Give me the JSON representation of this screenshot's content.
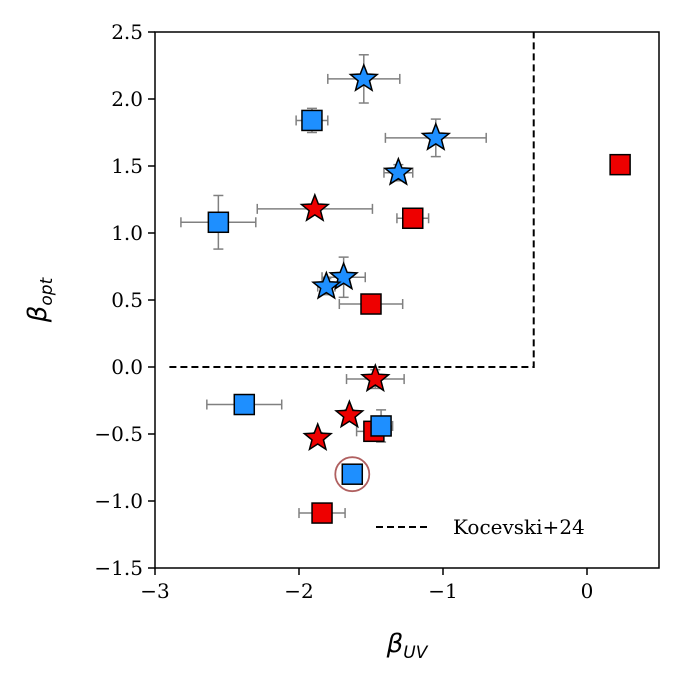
{
  "chart_data": {
    "type": "scatter",
    "title": "",
    "xlabel": {
      "main": "β",
      "sub": "UV"
    },
    "ylabel": {
      "main": "β",
      "sub": "opt"
    },
    "xlim": [
      -3,
      0.5
    ],
    "ylim": [
      -1.5,
      2.5
    ],
    "x_ticks": [
      -3,
      -2,
      -1,
      0
    ],
    "x_tick_labels": [
      "−3",
      "−2",
      "−1",
      "0"
    ],
    "y_ticks": [
      -1.5,
      -1.0,
      -0.5,
      0.0,
      0.5,
      1.0,
      1.5,
      2.0,
      2.5
    ],
    "y_tick_labels": [
      "−1.5",
      "−1.0",
      "−0.5",
      "0.0",
      "0.5",
      "1.0",
      "1.5",
      "2.0",
      "2.5"
    ],
    "grid": false,
    "colors": {
      "red": "#ee0000",
      "blue": "#1e8fff",
      "errorbar": "#808080",
      "circle": "#b06060",
      "edge": "#000000"
    },
    "points": [
      {
        "x": -1.55,
        "y": 2.15,
        "xerr": 0.25,
        "yerr": 0.18,
        "shape": "star",
        "color": "blue"
      },
      {
        "x": -1.05,
        "y": 1.71,
        "xerr": 0.35,
        "yerr": 0.14,
        "shape": "star",
        "color": "blue"
      },
      {
        "x": -1.31,
        "y": 1.45,
        "xerr": 0.1,
        "yerr": 0.06,
        "shape": "star",
        "color": "blue"
      },
      {
        "x": -1.89,
        "y": 1.18,
        "xerr": 0.4,
        "yerr": 0.0,
        "shape": "star",
        "color": "red"
      },
      {
        "x": -1.69,
        "y": 0.67,
        "xerr": 0.15,
        "yerr": 0.15,
        "shape": "star",
        "color": "blue"
      },
      {
        "x": -1.81,
        "y": 0.6,
        "xerr": 0.06,
        "yerr": 0.06,
        "shape": "star",
        "color": "blue"
      },
      {
        "x": -1.47,
        "y": -0.09,
        "xerr": 0.2,
        "yerr": 0.07,
        "shape": "star",
        "color": "red"
      },
      {
        "x": -1.65,
        "y": -0.36,
        "xerr": 0.04,
        "yerr": 0.04,
        "shape": "star",
        "color": "red"
      },
      {
        "x": -1.87,
        "y": -0.53,
        "xerr": 0.04,
        "yerr": 0.04,
        "shape": "star",
        "color": "red"
      },
      {
        "x": -1.91,
        "y": 1.84,
        "xerr": 0.11,
        "yerr": 0.09,
        "shape": "square",
        "color": "blue"
      },
      {
        "x": -2.56,
        "y": 1.08,
        "xerr": 0.26,
        "yerr": 0.2,
        "shape": "square",
        "color": "blue"
      },
      {
        "x": -1.21,
        "y": 1.11,
        "xerr": 0.11,
        "yerr": 0.05,
        "shape": "square",
        "color": "red"
      },
      {
        "x": 0.23,
        "y": 1.51,
        "xerr": 0.05,
        "yerr": 0.03,
        "shape": "square",
        "color": "red"
      },
      {
        "x": -1.5,
        "y": 0.47,
        "xerr": 0.22,
        "yerr": 0.05,
        "shape": "square",
        "color": "red"
      },
      {
        "x": -2.38,
        "y": -0.28,
        "xerr": 0.26,
        "yerr": 0.05,
        "shape": "square",
        "color": "blue"
      },
      {
        "x": -1.48,
        "y": -0.48,
        "xerr": 0.12,
        "yerr": 0.06,
        "shape": "square",
        "color": "red"
      },
      {
        "x": -1.43,
        "y": -0.44,
        "xerr": 0.08,
        "yerr": 0.12,
        "shape": "square",
        "color": "blue"
      },
      {
        "x": -1.63,
        "y": -0.8,
        "xerr": 0.0,
        "yerr": 0.0,
        "shape": "square",
        "color": "blue",
        "circled": true
      },
      {
        "x": -1.84,
        "y": -1.09,
        "xerr": 0.16,
        "yerr": 0.05,
        "shape": "square",
        "color": "red"
      }
    ],
    "reference_line": {
      "x": [
        -2.9,
        -0.37,
        -0.37
      ],
      "y": [
        0.0,
        0.0,
        2.6
      ],
      "style": "dashed",
      "label": "Kocevski+24"
    },
    "legend": {
      "position": "bottom-right",
      "entries": [
        "Kocevski+24"
      ]
    }
  }
}
